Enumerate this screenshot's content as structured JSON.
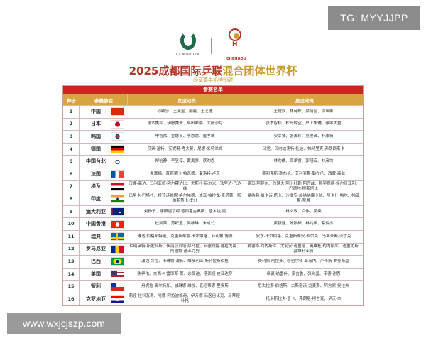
{
  "overlay": {
    "tg_label": "TG: MYYJJPP",
    "site_watermark": "www.wxjcjszp.com"
  },
  "logos": {
    "ittf": "ITTF WORLD CUP",
    "chengdu": "CHENGDU"
  },
  "header": {
    "title_red": "2025成都国际乒联",
    "title_gold": "混合团体世界杯",
    "subtitle": "@草莓牛奶特别甜"
  },
  "table": {
    "caption": "参赛名单",
    "columns": [
      "种子",
      "参赛协会",
      "女运动员",
      "男运动员"
    ],
    "rows": [
      {
        "seed": "1",
        "assoc": "中国",
        "flag": "china-flag",
        "women": "孙颖莎、王曼昱、蒯曼、王艺迪",
        "men": "王楚钦、林诗栋、梁靖崑、徐瑛彬"
      },
      {
        "seed": "2",
        "assoc": "日本",
        "flag": "japan-flag",
        "women": "张本美和、伊藤美诚、早田希娜、大藤沙月",
        "men": "张本智和、松岛辉空、户上隼辅、篠塚大登"
      },
      {
        "seed": "3",
        "assoc": "韩国",
        "flag": "korea-flag",
        "women": "申裕斌、金娜英、李恩惠、崔孝珠",
        "men": "安宰贤、张禹珍、吴晙诚、朴康贤"
      },
      {
        "seed": "4",
        "assoc": "德国",
        "flag": "germany-flag",
        "women": "莎宾·温特、安妮特·考夫曼、尼娜·米特兰姆",
        "men": "邱党、贝内迪克特·杜达、帕特里克·弗朗西斯卡"
      },
      {
        "seed": "5",
        "assoc": "中国台北",
        "flag": "chinese-taipei-flag",
        "women": "郑怡静、李昱谆、黄禹乔、蔡昀恩",
        "men": "林昀儒、高承睿、郭冠宏、林彦均"
      },
      {
        "seed": "6",
        "assoc": "法国",
        "flag": "france-flag",
        "women": "袁嘉楠、普莉蒂卡·帕瓦德、夏洛特·卢茨",
        "men": "费利克斯·勒布伦、艾利克斯·勒布伦、西蒙·高兹"
      },
      {
        "seed": "7",
        "assoc": "埃及",
        "flag": "egypt-flag",
        "women": "汉娜·高达、玛利亚姆·阿尔霍达比、尤斯拉·赫尔米、法里达·巴达维",
        "men": "奥玛·阿萨尔、约瑟夫·阿卜杜勒·阿齐兹、穆罕默德·埃尔贝亚利、巴德尔·穆斯塔法"
      },
      {
        "seed": "8",
        "assoc": "印度",
        "flag": "india-flag",
        "women": "玛尼卡·巴特拉、娅莎诗维妮·格尔帕德、迪亚·帕拉戈·奇塔莱、斯维斯蒂卡·戈什",
        "men": "曼纳弗·维卡诗·塔卡、沙提安·加纳纳塞卡兰、阿卡什·帕尔、帕亚斯·贾恩"
      },
      {
        "seed": "9",
        "assoc": "澳大利亚",
        "flag": "australia-flag",
        "women": "刘杨子、康斯坦丁娜·普西霍吉奥斯、佳木娃·吴",
        "men": "林文政、卢伟、吴焕"
      },
      {
        "seed": "10",
        "assoc": "中国香港",
        "flag": "hong-kong-flag",
        "women": "杜凯琹、苏籽童、吴咏琳、朱成竹",
        "men": "黄镇廷、陈颢桦、林兆恒、蔡俊杰"
      },
      {
        "seed": "11",
        "assoc": "瑞典",
        "flag": "sweden-flag",
        "women": "琳达·伯格斯特隆、克里斯蒂娜·卡尔伯格、菲利帕·博德",
        "men": "安东·卡尔伯格、克里斯蒂安·卡尔森、马蒂亚斯·法尔克"
      },
      {
        "seed": "12",
        "assoc": "罗马尼亚",
        "flag": "romania-flag",
        "women": "伯纳黛特·斯佐科斯、伊丽莎贝塔·萨马拉、安德烈娅·德拉戈曼、阿迪娜·迪亚克努",
        "men": "爱德华·约内斯库、尤利安·奇里塔、奥维杜·约内斯库、达里尤斯·莫维利亚努"
      },
      {
        "seed": "13",
        "assoc": "巴西",
        "flag": "brazil-flag",
        "women": "渡边·劳拉、卡琳娜·濑长、维多利亚·斯特拉斯伯格",
        "men": "费利佩·阿拉多、哈密尔顿·亚马内、卢卡斯·罗曼斯基"
      },
      {
        "seed": "14",
        "assoc": "美国",
        "flag": "usa-flag",
        "women": "陈伊依、杰西卡·雷耶斯-莱、余曼迪、塔西娅·皮亚达萨",
        "men": "希德·纳雷什、梁吉鲁、张向晶、韦德·谢恩"
      },
      {
        "seed": "15",
        "assoc": "智利",
        "flag": "chile-flag",
        "women": "丹妮拉·奥尔特加、波琳娜·维加、瓦伦蒂娜·里奥斯",
        "men": "尼古拉斯·伯格斯、古斯塔沃·戈麦斯、阿方索·奥拉夫"
      },
      {
        "seed": "16",
        "assoc": "克罗地亚",
        "flag": "croatia-flag",
        "women": "莉娅·拉科瓦奇、哈娜·阿拉波维奇、伊万娜·马洛巴比克、马蒂娅·叶格",
        "men": "托米斯拉夫·普卡、弗朗尼·柯吉克、伊沃·本"
      }
    ]
  },
  "colors": {
    "red": "#c8281e",
    "gold": "#d9a340",
    "title_red": "#b3362a",
    "ittf_green": "#1d6b47"
  }
}
